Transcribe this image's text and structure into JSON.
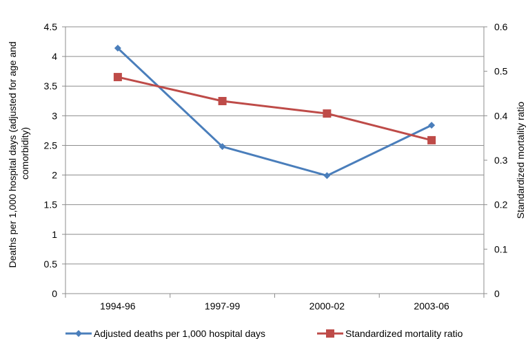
{
  "chart_data": {
    "type": "line",
    "title": "",
    "categories": [
      "1994-96",
      "1997-99",
      "2000-02",
      "2003-06"
    ],
    "y_left": {
      "label_lines": [
        "Deaths per 1,000 hospital days (adjusted for age and",
        "comorbidity)"
      ],
      "range": [
        0,
        4.5
      ],
      "ticks": [
        "0",
        "0.5",
        "1",
        "1.5",
        "2",
        "2.5",
        "3",
        "3.5",
        "4",
        "4.5"
      ]
    },
    "y_right": {
      "label": "Standardized mortality ratio",
      "range": [
        0,
        0.6
      ],
      "ticks": [
        "0",
        "0.1",
        "0.2",
        "0.3",
        "0.4",
        "0.5",
        "0.6"
      ]
    },
    "grid": "horizontal gridlines at left-axis ticks",
    "legend_position": "bottom",
    "series": [
      {
        "name": "Adjusted deaths per 1,000 hospital days",
        "axis": "left",
        "color": "#4a7ebb",
        "marker": "diamond",
        "values": [
          4.14,
          2.48,
          1.99,
          2.84
        ]
      },
      {
        "name": "Standardized mortality ratio",
        "axis": "right",
        "color": "#be4b48",
        "marker": "square",
        "values": [
          0.487,
          0.433,
          0.405,
          0.345
        ]
      }
    ]
  }
}
